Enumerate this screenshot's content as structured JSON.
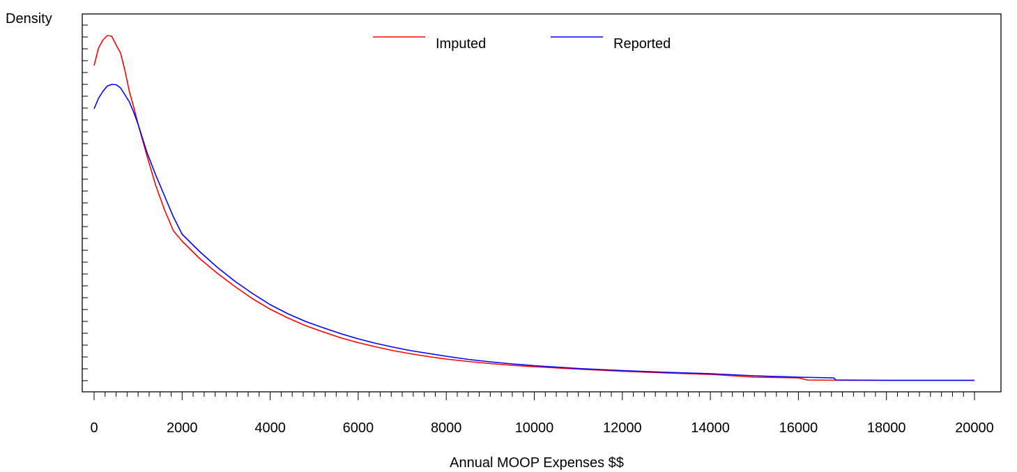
{
  "chart_data": {
    "type": "line",
    "title": "",
    "xlabel": "Annual MOOP Expenses $$",
    "ylabel": "Density",
    "xlim": [
      0,
      20000
    ],
    "ylim": [
      0,
      1
    ],
    "x_ticks": [
      "0",
      "2000",
      "4000",
      "6000",
      "8000",
      "10000",
      "12000",
      "14000",
      "16000",
      "18000",
      "20000"
    ],
    "x_tick_values": [
      0,
      2000,
      4000,
      6000,
      8000,
      10000,
      12000,
      14000,
      16000,
      18000,
      20000
    ],
    "y_tick_labels_shown": false,
    "grid": false,
    "legend_position": "top-center",
    "series": [
      {
        "name": "Imputed",
        "color": "#ff0000",
        "points": [
          [
            0,
            0.904
          ],
          [
            100,
            0.954
          ],
          [
            200,
            0.977
          ],
          [
            300,
            0.99
          ],
          [
            400,
            0.988
          ],
          [
            500,
            0.963
          ],
          [
            600,
            0.94
          ],
          [
            700,
            0.89
          ],
          [
            800,
            0.83
          ],
          [
            900,
            0.785
          ],
          [
            1000,
            0.735
          ],
          [
            1200,
            0.645
          ],
          [
            1400,
            0.56
          ],
          [
            1600,
            0.49
          ],
          [
            1800,
            0.43
          ],
          [
            2000,
            0.4
          ],
          [
            2400,
            0.35
          ],
          [
            2800,
            0.308
          ],
          [
            3200,
            0.27
          ],
          [
            3600,
            0.235
          ],
          [
            4000,
            0.205
          ],
          [
            4400,
            0.18
          ],
          [
            4800,
            0.158
          ],
          [
            5200,
            0.14
          ],
          [
            5600,
            0.123
          ],
          [
            6000,
            0.109
          ],
          [
            6400,
            0.097
          ],
          [
            6800,
            0.086
          ],
          [
            7200,
            0.077
          ],
          [
            7600,
            0.069
          ],
          [
            8000,
            0.062
          ],
          [
            8500,
            0.055
          ],
          [
            9000,
            0.049
          ],
          [
            9500,
            0.044
          ],
          [
            10000,
            0.04
          ],
          [
            11000,
            0.033
          ],
          [
            12000,
            0.027
          ],
          [
            13000,
            0.022
          ],
          [
            14000,
            0.018
          ],
          [
            15000,
            0.01
          ],
          [
            16000,
            0.008
          ],
          [
            16200,
            0.002
          ],
          [
            17000,
            0.001
          ],
          [
            18000,
            0.001
          ],
          [
            19000,
            0.001
          ],
          [
            20000,
            0.001
          ]
        ]
      },
      {
        "name": "Reported",
        "color": "#0000ff",
        "points": [
          [
            0,
            0.78
          ],
          [
            100,
            0.81
          ],
          [
            200,
            0.83
          ],
          [
            300,
            0.845
          ],
          [
            400,
            0.85
          ],
          [
            500,
            0.849
          ],
          [
            600,
            0.84
          ],
          [
            700,
            0.82
          ],
          [
            800,
            0.8
          ],
          [
            900,
            0.77
          ],
          [
            1000,
            0.735
          ],
          [
            1200,
            0.655
          ],
          [
            1400,
            0.59
          ],
          [
            1600,
            0.53
          ],
          [
            1800,
            0.47
          ],
          [
            2000,
            0.42
          ],
          [
            2400,
            0.37
          ],
          [
            2800,
            0.325
          ],
          [
            3200,
            0.285
          ],
          [
            3600,
            0.25
          ],
          [
            4000,
            0.218
          ],
          [
            4400,
            0.192
          ],
          [
            4800,
            0.17
          ],
          [
            5200,
            0.152
          ],
          [
            5600,
            0.135
          ],
          [
            6000,
            0.12
          ],
          [
            6400,
            0.107
          ],
          [
            6800,
            0.096
          ],
          [
            7200,
            0.086
          ],
          [
            7600,
            0.078
          ],
          [
            8000,
            0.07
          ],
          [
            8500,
            0.061
          ],
          [
            9000,
            0.054
          ],
          [
            9500,
            0.048
          ],
          [
            10000,
            0.043
          ],
          [
            11000,
            0.035
          ],
          [
            12000,
            0.029
          ],
          [
            13000,
            0.024
          ],
          [
            14000,
            0.02
          ],
          [
            15000,
            0.014
          ],
          [
            16000,
            0.01
          ],
          [
            16800,
            0.008
          ],
          [
            16850,
            0.002
          ],
          [
            18000,
            0.001
          ],
          [
            19000,
            0.001
          ],
          [
            20000,
            0.001
          ]
        ]
      }
    ]
  }
}
